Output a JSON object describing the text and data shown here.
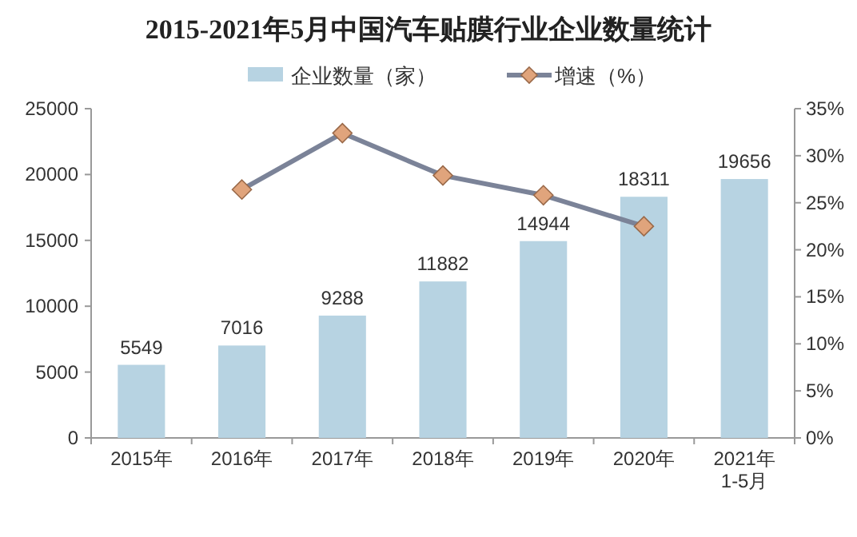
{
  "chart_data": {
    "type": "bar",
    "title": "2015-2021年5月中国汽车贴膜行业企业数量统计",
    "categories": [
      "2015年",
      "2016年",
      "2017年",
      "2018年",
      "2019年",
      "2020年",
      "2021年\n1-5月"
    ],
    "series": [
      {
        "name": "企业数量（家）",
        "color": "#b7d3e2",
        "values": [
          5549,
          7016,
          9288,
          11882,
          14944,
          18311,
          19656
        ],
        "value_labels": [
          "5549",
          "7016",
          "9288",
          "11882",
          "14944",
          "18311",
          "19656"
        ]
      },
      {
        "name": "增速（%）",
        "type": "line",
        "axis": "y2",
        "color": "#7b8398",
        "marker": "diamond",
        "values": [
          null,
          26.4,
          32.4,
          27.9,
          25.8,
          22.5,
          null
        ]
      }
    ],
    "ylim": [
      0,
      25000
    ],
    "yticks": [
      0,
      5000,
      10000,
      15000,
      20000,
      25000
    ],
    "y2lim": [
      0,
      35
    ],
    "y2ticks": [
      {
        "value": 0,
        "label": "0%"
      },
      {
        "value": 5,
        "label": "5%"
      },
      {
        "value": 10,
        "label": "10%"
      },
      {
        "value": 15,
        "label": "15%"
      },
      {
        "value": 20,
        "label": "20%"
      },
      {
        "value": 25,
        "label": "25%"
      },
      {
        "value": 30,
        "label": "30%"
      },
      {
        "value": 35,
        "label": "35%"
      }
    ],
    "grid": false,
    "legend": "top"
  }
}
